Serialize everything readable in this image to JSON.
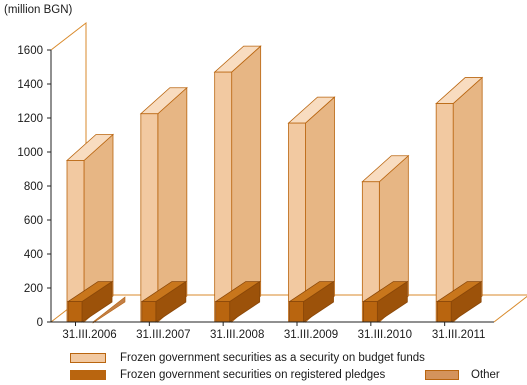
{
  "chart_data": {
    "type": "bar",
    "unit_label": "(million BGN)",
    "categories": [
      "31.III.2006",
      "31.III.2007",
      "31.III.2008",
      "31.III.2009",
      "31.III.2010",
      "31.III.2011"
    ],
    "series": [
      {
        "name": "Frozen government securities as a security on budget funds",
        "values": [
          950,
          1225,
          1470,
          1170,
          825,
          1285
        ],
        "color": "#f2c9a1"
      },
      {
        "name": "Frozen government securities on registered pledges",
        "values": [
          120,
          120,
          120,
          120,
          120,
          120
        ],
        "color": "#b9650f"
      },
      {
        "name": "Other",
        "values": [
          0,
          0,
          0,
          0,
          0,
          0
        ],
        "color": "#d4935c"
      }
    ],
    "ylim": [
      0,
      1600
    ],
    "yticks": [
      0,
      200,
      400,
      600,
      800,
      1000,
      1200,
      1400,
      1600
    ],
    "grid": false,
    "legend_position": "bottom"
  }
}
